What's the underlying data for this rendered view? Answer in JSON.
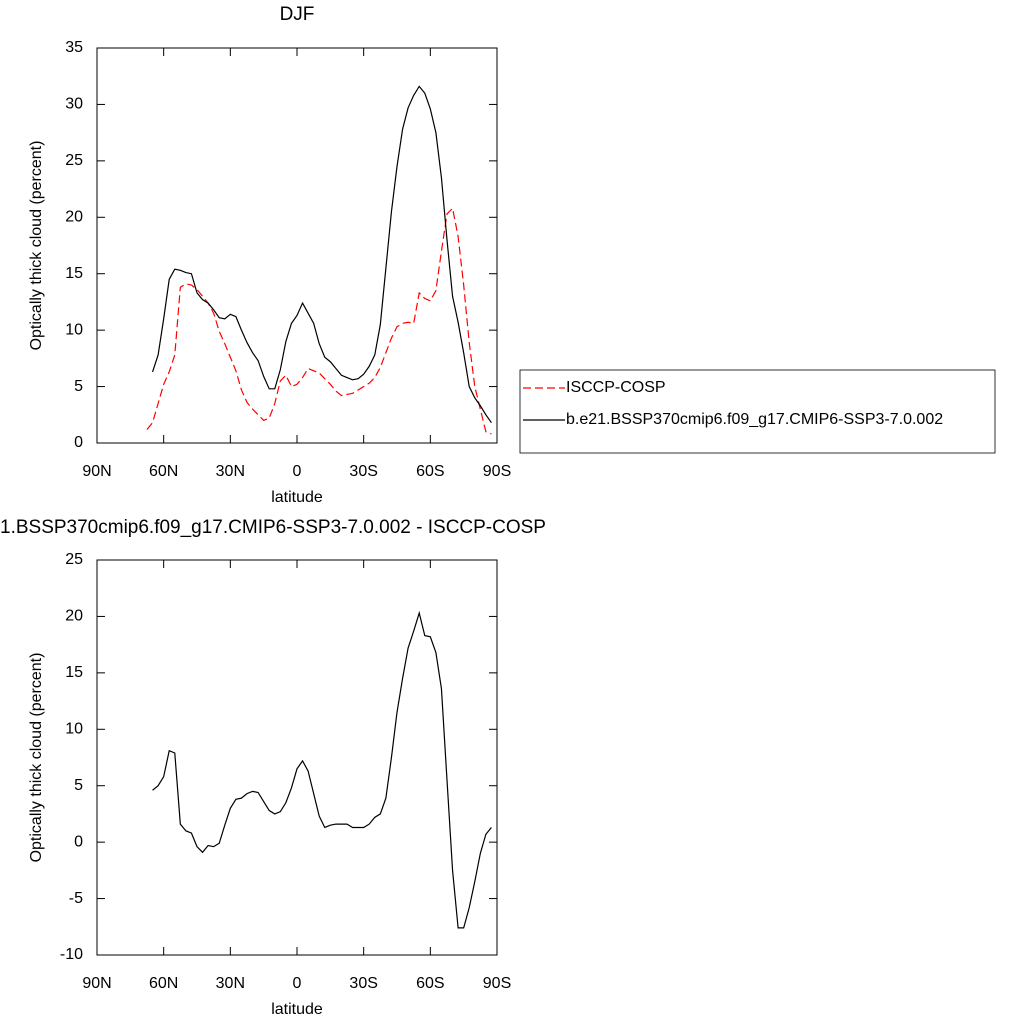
{
  "chart_data": [
    {
      "type": "line",
      "title": "DJF",
      "x_label": "latitude",
      "y_label": "Optically thick cloud (percent)",
      "x": [
        67.5,
        65,
        62.5,
        60,
        57.5,
        55,
        52.5,
        50,
        47.5,
        45,
        42.5,
        40,
        37.5,
        35,
        32.5,
        30,
        27.5,
        25,
        22.5,
        20,
        17.5,
        15,
        12.5,
        10,
        7.5,
        5,
        2.5,
        0,
        -2.5,
        -5,
        -7.5,
        -10,
        -12.5,
        -15,
        -17.5,
        -20,
        -22.5,
        -25,
        -27.5,
        -30,
        -32.5,
        -35,
        -37.5,
        -40,
        -42.5,
        -45,
        -47.5,
        -50,
        -52.5,
        -55,
        -57.5,
        -60,
        -62.5,
        -65,
        -67.5,
        -70,
        -72.5,
        -75,
        -77.5,
        -80,
        -82.5,
        -85,
        -87.5
      ],
      "xlim": [
        90,
        -90
      ],
      "xticks": [
        {
          "value": 90,
          "label": "90N"
        },
        {
          "value": 60,
          "label": "60N"
        },
        {
          "value": 30,
          "label": "30N"
        },
        0,
        {
          "value": -30,
          "label": "30S"
        },
        {
          "value": -60,
          "label": "60S"
        },
        {
          "value": -90,
          "label": "90S"
        }
      ],
      "ylim": [
        0,
        35
      ],
      "yticks": [
        0,
        5,
        10,
        15,
        20,
        25,
        30,
        35
      ],
      "legend": "right",
      "series": [
        {
          "name": "ISCCP-COSP",
          "color": "#ff0000",
          "line_style": "dashed",
          "values": [
            1.2,
            1.8,
            3.5,
            5.2,
            6.3,
            7.8,
            13.8,
            14.1,
            14.0,
            13.6,
            13.0,
            12.4,
            11.5,
            9.9,
            8.8,
            7.6,
            6.4,
            4.7,
            3.6,
            3.0,
            2.5,
            2.0,
            2.2,
            3.5,
            5.5,
            6.0,
            5.0,
            5.2,
            5.8,
            6.6,
            6.4,
            6.2,
            5.7,
            5.2,
            4.6,
            4.2,
            4.3,
            4.4,
            4.7,
            5.0,
            5.3,
            5.8,
            6.7,
            8.0,
            9.3,
            10.3,
            10.6,
            10.7,
            10.6,
            13.3,
            12.8,
            12.6,
            13.5,
            17.0,
            20.3,
            20.8,
            18.3,
            14.0,
            8.9,
            5.0,
            3.0,
            1.0,
            0.8
          ]
        },
        {
          "name": "b.e21.BSSP370cmip6.f09_g17.CMIP6-SSP3-7.0.002",
          "color": "#000000",
          "line_style": "solid",
          "values": [
            null,
            6.3,
            7.8,
            11.0,
            14.5,
            15.4,
            15.3,
            15.1,
            15.0,
            13.3,
            12.7,
            12.4,
            11.8,
            11.1,
            11.0,
            11.4,
            11.2,
            10.0,
            8.9,
            8.0,
            7.3,
            5.9,
            4.8,
            4.8,
            6.5,
            9.0,
            10.6,
            11.3,
            12.4,
            11.5,
            10.6,
            8.8,
            7.6,
            7.2,
            6.6,
            6.0,
            5.8,
            5.6,
            5.7,
            6.1,
            6.8,
            7.8,
            10.5,
            15.5,
            20.5,
            24.5,
            27.8,
            29.7,
            30.8,
            31.6,
            31.0,
            29.6,
            27.5,
            23.5,
            18.0,
            13.0,
            10.7,
            8.0,
            5.0,
            4.0,
            3.3,
            2.5,
            1.8
          ]
        }
      ]
    },
    {
      "type": "line",
      "title": "1.BSSP370cmip6.f09_g17.CMIP6-SSP3-7.0.002 - ISCCP-COSP",
      "x_label": "latitude",
      "y_label": "Optically thick cloud (percent)",
      "x": [
        67.5,
        65,
        62.5,
        60,
        57.5,
        55,
        52.5,
        50,
        47.5,
        45,
        42.5,
        40,
        37.5,
        35,
        32.5,
        30,
        27.5,
        25,
        22.5,
        20,
        17.5,
        15,
        12.5,
        10,
        7.5,
        5,
        2.5,
        0,
        -2.5,
        -5,
        -7.5,
        -10,
        -12.5,
        -15,
        -17.5,
        -20,
        -22.5,
        -25,
        -27.5,
        -30,
        -32.5,
        -35,
        -37.5,
        -40,
        -42.5,
        -45,
        -47.5,
        -50,
        -52.5,
        -55,
        -57.5,
        -60,
        -62.5,
        -65,
        -67.5,
        -70,
        -72.5,
        -75,
        -77.5,
        -80,
        -82.5,
        -85,
        -87.5
      ],
      "xlim": [
        90,
        -90
      ],
      "xticks": [
        {
          "value": 90,
          "label": "90N"
        },
        {
          "value": 60,
          "label": "60N"
        },
        {
          "value": 30,
          "label": "30N"
        },
        0,
        {
          "value": -30,
          "label": "30S"
        },
        {
          "value": -60,
          "label": "60S"
        },
        {
          "value": -90,
          "label": "90S"
        }
      ],
      "ylim": [
        -10,
        25
      ],
      "yticks": [
        -10,
        -5,
        0,
        5,
        10,
        15,
        20,
        25
      ],
      "color": "#000000",
      "values": [
        null,
        4.6,
        5.0,
        5.8,
        8.1,
        7.9,
        1.6,
        1.0,
        0.8,
        -0.4,
        -0.9,
        -0.3,
        -0.4,
        -0.1,
        1.5,
        3.0,
        3.8,
        3.9,
        4.3,
        4.5,
        4.4,
        3.6,
        2.8,
        2.5,
        2.7,
        3.5,
        4.8,
        6.5,
        7.2,
        6.3,
        4.3,
        2.3,
        1.3,
        1.5,
        1.6,
        1.6,
        1.6,
        1.3,
        1.3,
        1.3,
        1.6,
        2.2,
        2.5,
        3.9,
        7.5,
        11.5,
        14.5,
        17.2,
        18.7,
        20.3,
        18.3,
        18.2,
        16.8,
        13.6,
        5.5,
        -2.5,
        -7.6,
        -7.6,
        -5.8,
        -3.5,
        -1.0,
        0.7,
        1.3
      ]
    }
  ]
}
